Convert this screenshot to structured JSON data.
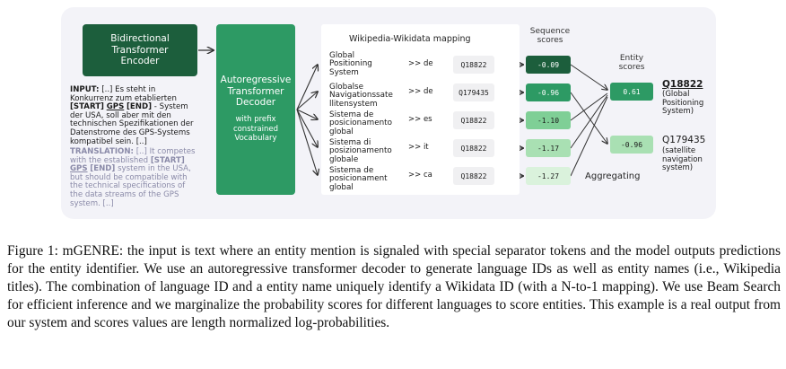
{
  "diagram": {
    "encoder_label": "Bidirectional\nTransformer\nEncoder",
    "decoder_title": "Autoregressive\nTransformer\nDecoder",
    "decoder_sub": "with prefix\nconstrained\nVocabulary",
    "input_label": "INPUT:",
    "input_text": "[..] Es steht in Konkurrenz zum etablierten",
    "input_start": "[START]",
    "input_gps": "GPS",
    "input_end": "[END]",
    "input_rest": "- System der USA, soll aber mit den technischen Spezifikationen der Datenstrome des GPS-Systems kompatibel sein. [..]",
    "translation_label": "TRANSLATION:",
    "translation_text": "[..] It competes with the established",
    "translation_start": "[START]",
    "translation_gps": "GPS",
    "translation_end": "[END]",
    "translation_rest": "system in the USA, but should be compatible with the technical specifications of the data streams of the GPS system. [..]",
    "mapping_heading": "Wikipedia-Wikidata mapping",
    "sequence_heading": "Sequence\nscores",
    "entity_heading": "Entity\nscores",
    "aggregating_label": "Aggregating",
    "rows": [
      {
        "title": "Global\nPositioning\nSystem",
        "lang": ">> de",
        "qid": "Q18822",
        "score": "-0.09",
        "bg": "#1c5e3c",
        "fg": "#ffffff"
      },
      {
        "title": "Globalse\nNavigationssate\nllitensystem",
        "lang": ">> de",
        "qid": "Q179435",
        "score": "-0.96",
        "bg": "#2d9a64",
        "fg": "#ffffff"
      },
      {
        "title": "Sistema de\nposicionamento\nglobal",
        "lang": ">> es",
        "qid": "Q18822",
        "score": "-1.10",
        "bg": "#7fcf96",
        "fg": "#1a1a1a"
      },
      {
        "title": "Sistema di\nposizionamento\nglobale",
        "lang": ">> it",
        "qid": "Q18822",
        "score": "-1.17",
        "bg": "#a9e0b3",
        "fg": "#1a1a1a"
      },
      {
        "title": "Sistema de\nposicionament\nglobal",
        "lang": ">> ca",
        "qid": "Q18822",
        "score": "-1.27",
        "bg": "#daf2dc",
        "fg": "#1a1a1a"
      }
    ],
    "entities": [
      {
        "score": "0.61",
        "id": "Q18822",
        "desc": "(Global\nPositioning\nSystem)",
        "bg": "#2d9a64",
        "fg": "#ffffff"
      },
      {
        "score": "-0.96",
        "id": "Q179435",
        "desc": "(satellite\nnavigation\nsystem)",
        "bg": "#a9e0b3",
        "fg": "#1a1a1a"
      }
    ]
  },
  "caption": "Figure 1: mGENRE: the input is text where an entity mention is signaled with special separator tokens and the model outputs predictions for the entity identifier. We use an autoregressive transformer decoder to generate language IDs as well as entity names (i.e., Wikipedia titles). The combination of language ID and a entity name uniquely identify a Wikidata ID (with a N-to-1 mapping). We use Beam Search for efficient inference and we marginalize the probability scores for different languages to score entities. This example is a real output from our system and scores values are length normalized log-probabilities."
}
